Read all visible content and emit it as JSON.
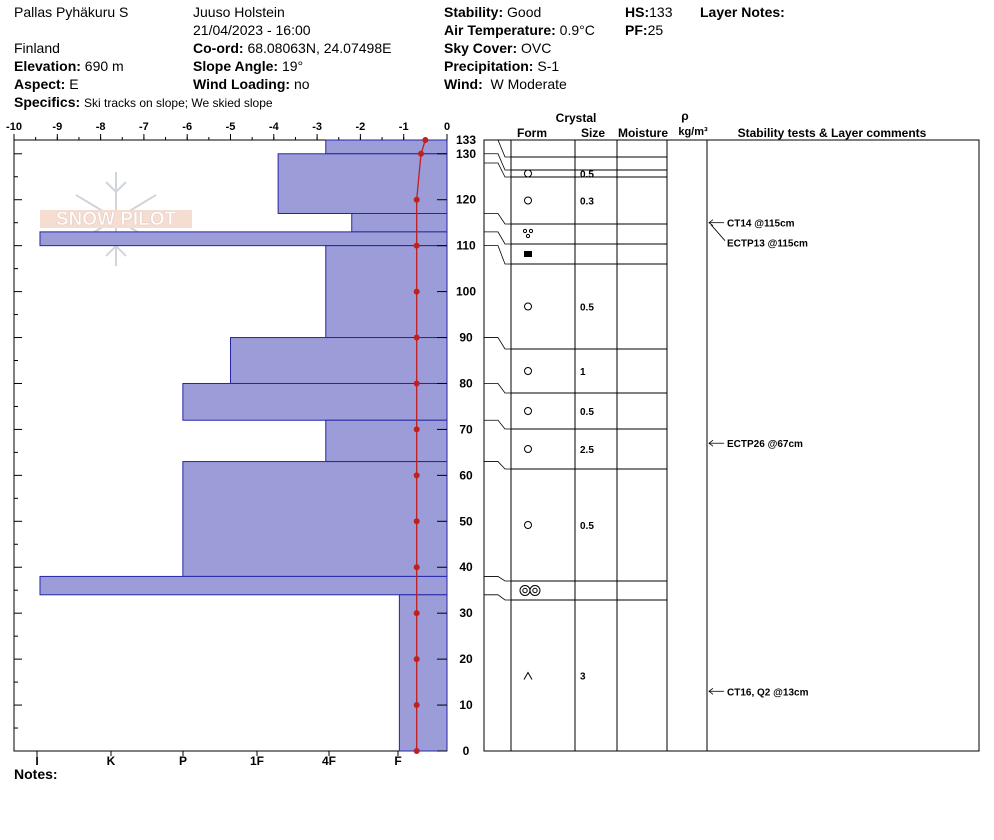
{
  "header": {
    "location": "Pallas Pyhäkuru S",
    "country": "Finland",
    "elevation_label": "Elevation:",
    "elevation": "690 m",
    "aspect_label": "Aspect:",
    "aspect": "E",
    "specifics_label": "Specifics:",
    "specifics": "Ski tracks on slope; We skied slope",
    "observer": "Juuso Holstein",
    "datetime": "21/04/2023 - 16:00",
    "coord_label": "Co-ord:",
    "coord": "68.08063N, 24.07498E",
    "slope_label": "Slope Angle:",
    "slope": "19°",
    "wind_loading_label": "Wind Loading:",
    "wind_loading": "no",
    "stability_label": "Stability:",
    "stability": "Good",
    "air_temp_label": "Air Temperature:",
    "air_temp": "0.9°C",
    "sky_label": "Sky Cover:",
    "sky": "OVC",
    "precip_label": "Precipitation:",
    "precip": "S-1",
    "wind_label": "Wind:",
    "wind": "W Moderate",
    "hs_label": "HS:",
    "hs": "133",
    "pf_label": "PF:",
    "pf": "25",
    "layer_notes_label": "Layer Notes:"
  },
  "notes_label": "Notes:",
  "logo_text": "SNOW PILOT",
  "table_headers": {
    "crystal": "Crystal",
    "form": "Form",
    "size": "Size",
    "moisture": "Moisture",
    "rho": "ρ",
    "density_unit": "kg/m³",
    "stability_comments": "Stability tests & Layer comments"
  },
  "colors": {
    "bar_fill": "#9c9cd8",
    "bar_stroke": "#2626a6",
    "temp": "#c02020"
  },
  "chart_data": {
    "type": "bar",
    "temp_axis": {
      "ticks": [
        -10,
        -9,
        -8,
        -7,
        -6,
        -5,
        -4,
        -3,
        -2,
        -1,
        0
      ],
      "range": [
        -10,
        0
      ]
    },
    "hand_hardness_axis": {
      "labels": [
        "I",
        "K",
        "P",
        "1F",
        "4F",
        "F"
      ]
    },
    "height_axis": {
      "ticks": [
        0,
        10,
        20,
        30,
        40,
        50,
        60,
        70,
        80,
        90,
        100,
        110,
        120,
        130
      ],
      "top_label": 133,
      "range": [
        0,
        133
      ]
    },
    "layers": [
      {
        "bottom": 130,
        "top": 133,
        "hardness_width": 2.8
      },
      {
        "bottom": 117,
        "top": 130,
        "hardness_width": 3.9
      },
      {
        "bottom": 113,
        "top": 117,
        "hardness_width": 2.2
      },
      {
        "bottom": 110,
        "top": 113,
        "hardness_width": 9.4
      },
      {
        "bottom": 90,
        "top": 110,
        "hardness_width": 2.8
      },
      {
        "bottom": 80,
        "top": 90,
        "hardness_width": 5.0
      },
      {
        "bottom": 72,
        "top": 80,
        "hardness_width": 6.1
      },
      {
        "bottom": 63,
        "top": 72,
        "hardness_width": 2.8
      },
      {
        "bottom": 38,
        "top": 63,
        "hardness_width": 6.1
      },
      {
        "bottom": 34,
        "top": 38,
        "hardness_width": 9.4
      },
      {
        "bottom": 0,
        "top": 34,
        "hardness_width": 1.1
      }
    ],
    "temperature_profile": [
      {
        "height": 133,
        "temp": -0.5
      },
      {
        "height": 130,
        "temp": -0.6
      },
      {
        "height": 120,
        "temp": -0.7
      },
      {
        "height": 110,
        "temp": -0.7
      },
      {
        "height": 100,
        "temp": -0.7
      },
      {
        "height": 90,
        "temp": -0.7
      },
      {
        "height": 80,
        "temp": -0.7
      },
      {
        "height": 70,
        "temp": -0.7
      },
      {
        "height": 60,
        "temp": -0.7
      },
      {
        "height": 50,
        "temp": -0.7
      },
      {
        "height": 40,
        "temp": -0.7
      },
      {
        "height": 30,
        "temp": -0.7
      },
      {
        "height": 20,
        "temp": -0.7
      },
      {
        "height": 10,
        "temp": -0.7
      },
      {
        "height": 0,
        "temp": -0.7
      }
    ],
    "table_rows": [
      {
        "bottom": 130,
        "top": 133,
        "form": "",
        "size": ""
      },
      {
        "bottom": 128,
        "top": 130,
        "form": "circle",
        "size": "0.5"
      },
      {
        "bottom": 117,
        "top": 128,
        "form": "circle",
        "size": "0.3"
      },
      {
        "bottom": 113,
        "top": 117,
        "form": "dots",
        "size": ""
      },
      {
        "bottom": 110,
        "top": 113,
        "form": "square",
        "size": ""
      },
      {
        "bottom": 90,
        "top": 110,
        "form": "circle",
        "size": "0.5"
      },
      {
        "bottom": 80,
        "top": 90,
        "form": "circle",
        "size": "1"
      },
      {
        "bottom": 72,
        "top": 80,
        "form": "circle",
        "size": "0.5"
      },
      {
        "bottom": 63,
        "top": 72,
        "form": "circle",
        "size": "2.5"
      },
      {
        "bottom": 38,
        "top": 63,
        "form": "circle",
        "size": "0.5"
      },
      {
        "bottom": 34,
        "top": 38,
        "form": "double-circle",
        "size": ""
      },
      {
        "bottom": 0,
        "top": 34,
        "form": "caret",
        "size": "3"
      }
    ],
    "stability_tests": [
      {
        "height": 115,
        "text": "CT14 @115cm"
      },
      {
        "height": 115,
        "text": "ECTP13 @115cm",
        "offset": true
      },
      {
        "height": 67,
        "text": "ECTP26 @67cm"
      },
      {
        "height": 13,
        "text": "CT16, Q2 @13cm"
      }
    ]
  }
}
